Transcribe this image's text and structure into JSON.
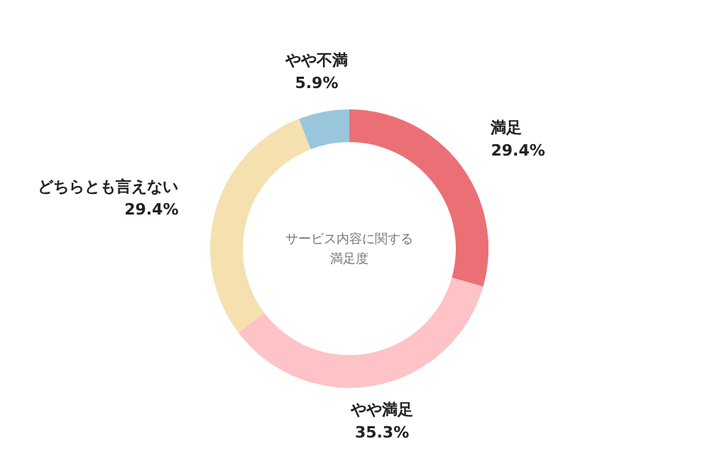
{
  "chart_data": {
    "type": "donut",
    "title": "サービス内容に関する",
    "subtitle": "満足度",
    "categories": [
      "満足",
      "やや満足",
      "どちらとも言えない",
      "やや不満"
    ],
    "values": [
      29.4,
      35.3,
      29.4,
      5.9
    ],
    "value_labels": [
      "29.4%",
      "35.3%",
      "29.4%",
      "5.9%"
    ],
    "colors": [
      "#eb7075",
      "#fdc3c6",
      "#f5e0b0",
      "#9ac6dc"
    ]
  }
}
